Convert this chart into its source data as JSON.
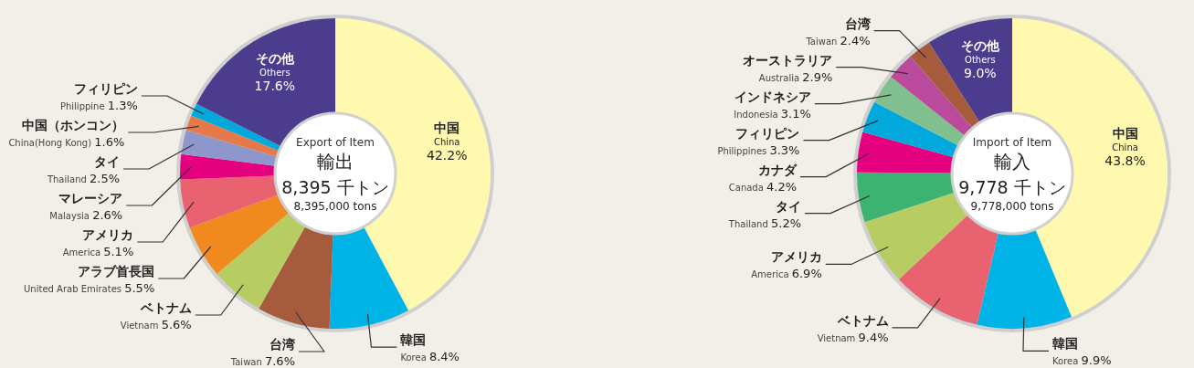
{
  "chart_data": [
    {
      "type": "donut",
      "subtitle": "Export of Item",
      "title": "輸出",
      "annotations": [
        "8,395 千トン",
        "8,395,000 tons"
      ],
      "categories": [
        "中国\nChina",
        "韓国\nKorea",
        "台湾\nTaiwan",
        "ベトナム\nVietnam",
        "アラブ首長国\nUnited Arab Emirates",
        "アメリカ\nAmerica",
        "マレーシア\nMalaysia",
        "タイ\nThailand",
        "中国（ホンコン）\nChina(Hong Kong)",
        "フィリピン\nPhilippine",
        "その他\nOthers"
      ],
      "values": [
        42.2,
        8.4,
        7.6,
        5.6,
        5.5,
        5.1,
        2.6,
        2.5,
        1.6,
        1.3,
        17.6
      ],
      "value_labels": [
        "42.2%",
        "8.4%",
        "7.6%",
        "5.6%",
        "5.5%",
        "5.1%",
        "2.6%",
        "2.5%",
        "1.6%",
        "1.3%",
        "17.6%"
      ],
      "colors": [
        "#fff9b0",
        "#00b3e6",
        "#a65c3c",
        "#b7cc62",
        "#f0891e",
        "#e8626f",
        "#e4007f",
        "#8e97cc",
        "#e5794a",
        "#00a8dc",
        "#4b3c8e"
      ]
    },
    {
      "type": "donut",
      "subtitle": "Import of Item",
      "title": "輸入",
      "annotations": [
        "9,778 千トン",
        "9,778,000 tons"
      ],
      "categories": [
        "中国\nChina",
        "韓国\nKorea",
        "ベトナム\nVietnam",
        "アメリカ\nAmerica",
        "タイ\nThailand",
        "カナダ\nCanada",
        "フィリピン\nPhilippines",
        "インドネシア\nIndonesia",
        "オーストラリア\nAustralia",
        "台湾\nTaiwan",
        "その他\nOthers"
      ],
      "values": [
        43.8,
        9.9,
        9.4,
        6.9,
        5.2,
        4.2,
        3.3,
        3.1,
        2.9,
        2.4,
        9.0
      ],
      "value_labels": [
        "43.8%",
        "9.9%",
        "9.4%",
        "6.9%",
        "5.2%",
        "4.2%",
        "3.3%",
        "3.1%",
        "2.9%",
        "2.4%",
        "9.0%"
      ],
      "colors": [
        "#fff9b0",
        "#00b3e6",
        "#e8626f",
        "#b7cc62",
        "#3cb371",
        "#e4007f",
        "#00a8dc",
        "#80bf8e",
        "#b94a9c",
        "#a65c3c",
        "#4b3c8e"
      ]
    }
  ]
}
